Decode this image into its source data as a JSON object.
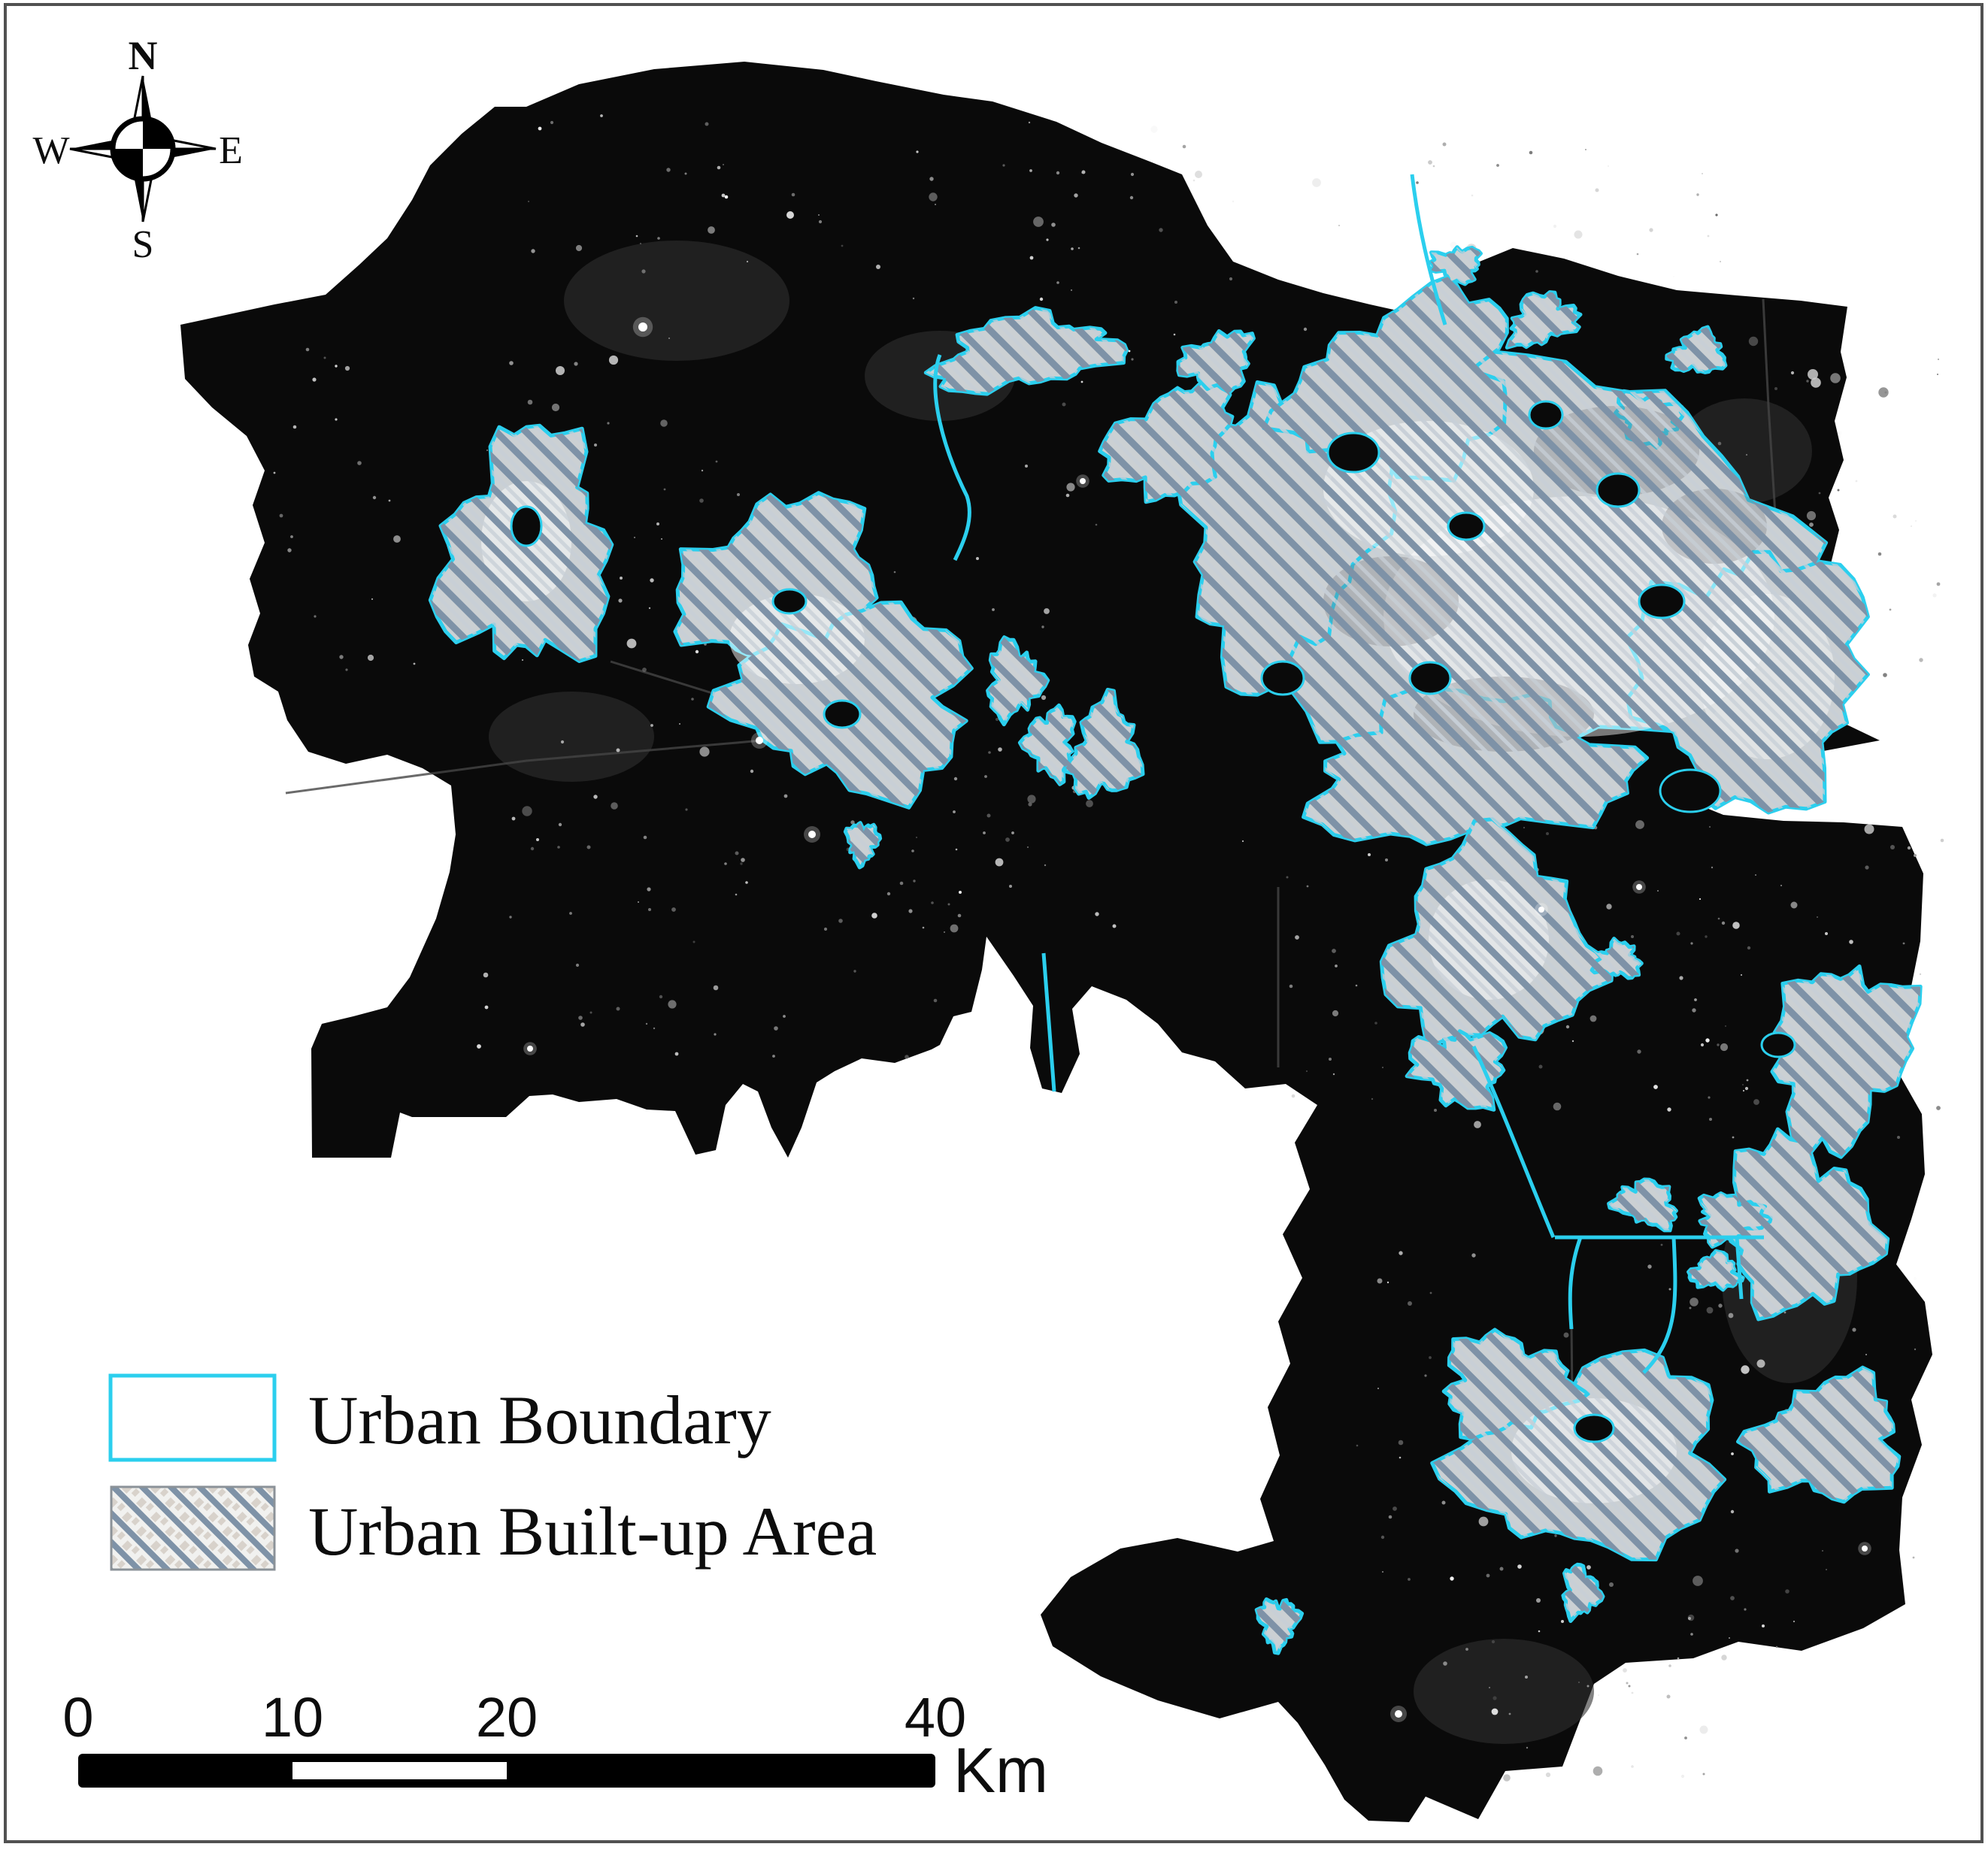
{
  "compass": {
    "north": "N",
    "east": "E",
    "south": "S",
    "west": "W"
  },
  "legend": {
    "items": [
      {
        "label": "Urban Boundary",
        "swatch": "cyan-outline-box"
      },
      {
        "label": "Urban Built-up Area",
        "swatch": "diagonal-hatch-box"
      }
    ]
  },
  "scalebar": {
    "ticks": [
      {
        "label": "0",
        "km": 0
      },
      {
        "label": "10",
        "km": 10
      },
      {
        "label": "20",
        "km": 20
      },
      {
        "label": "40",
        "km": 40
      }
    ],
    "unit": "Km"
  },
  "colors": {
    "boundary_cyan": "#2bcfee",
    "hatch_stripe": "#7e92a7",
    "hatch_base": "#f1f1ef",
    "hatch_mottle": "#d8d2cb",
    "land": "#0a0a0a",
    "background": "#ffffff",
    "frame": "#515151",
    "text": "#0d0d0d"
  }
}
